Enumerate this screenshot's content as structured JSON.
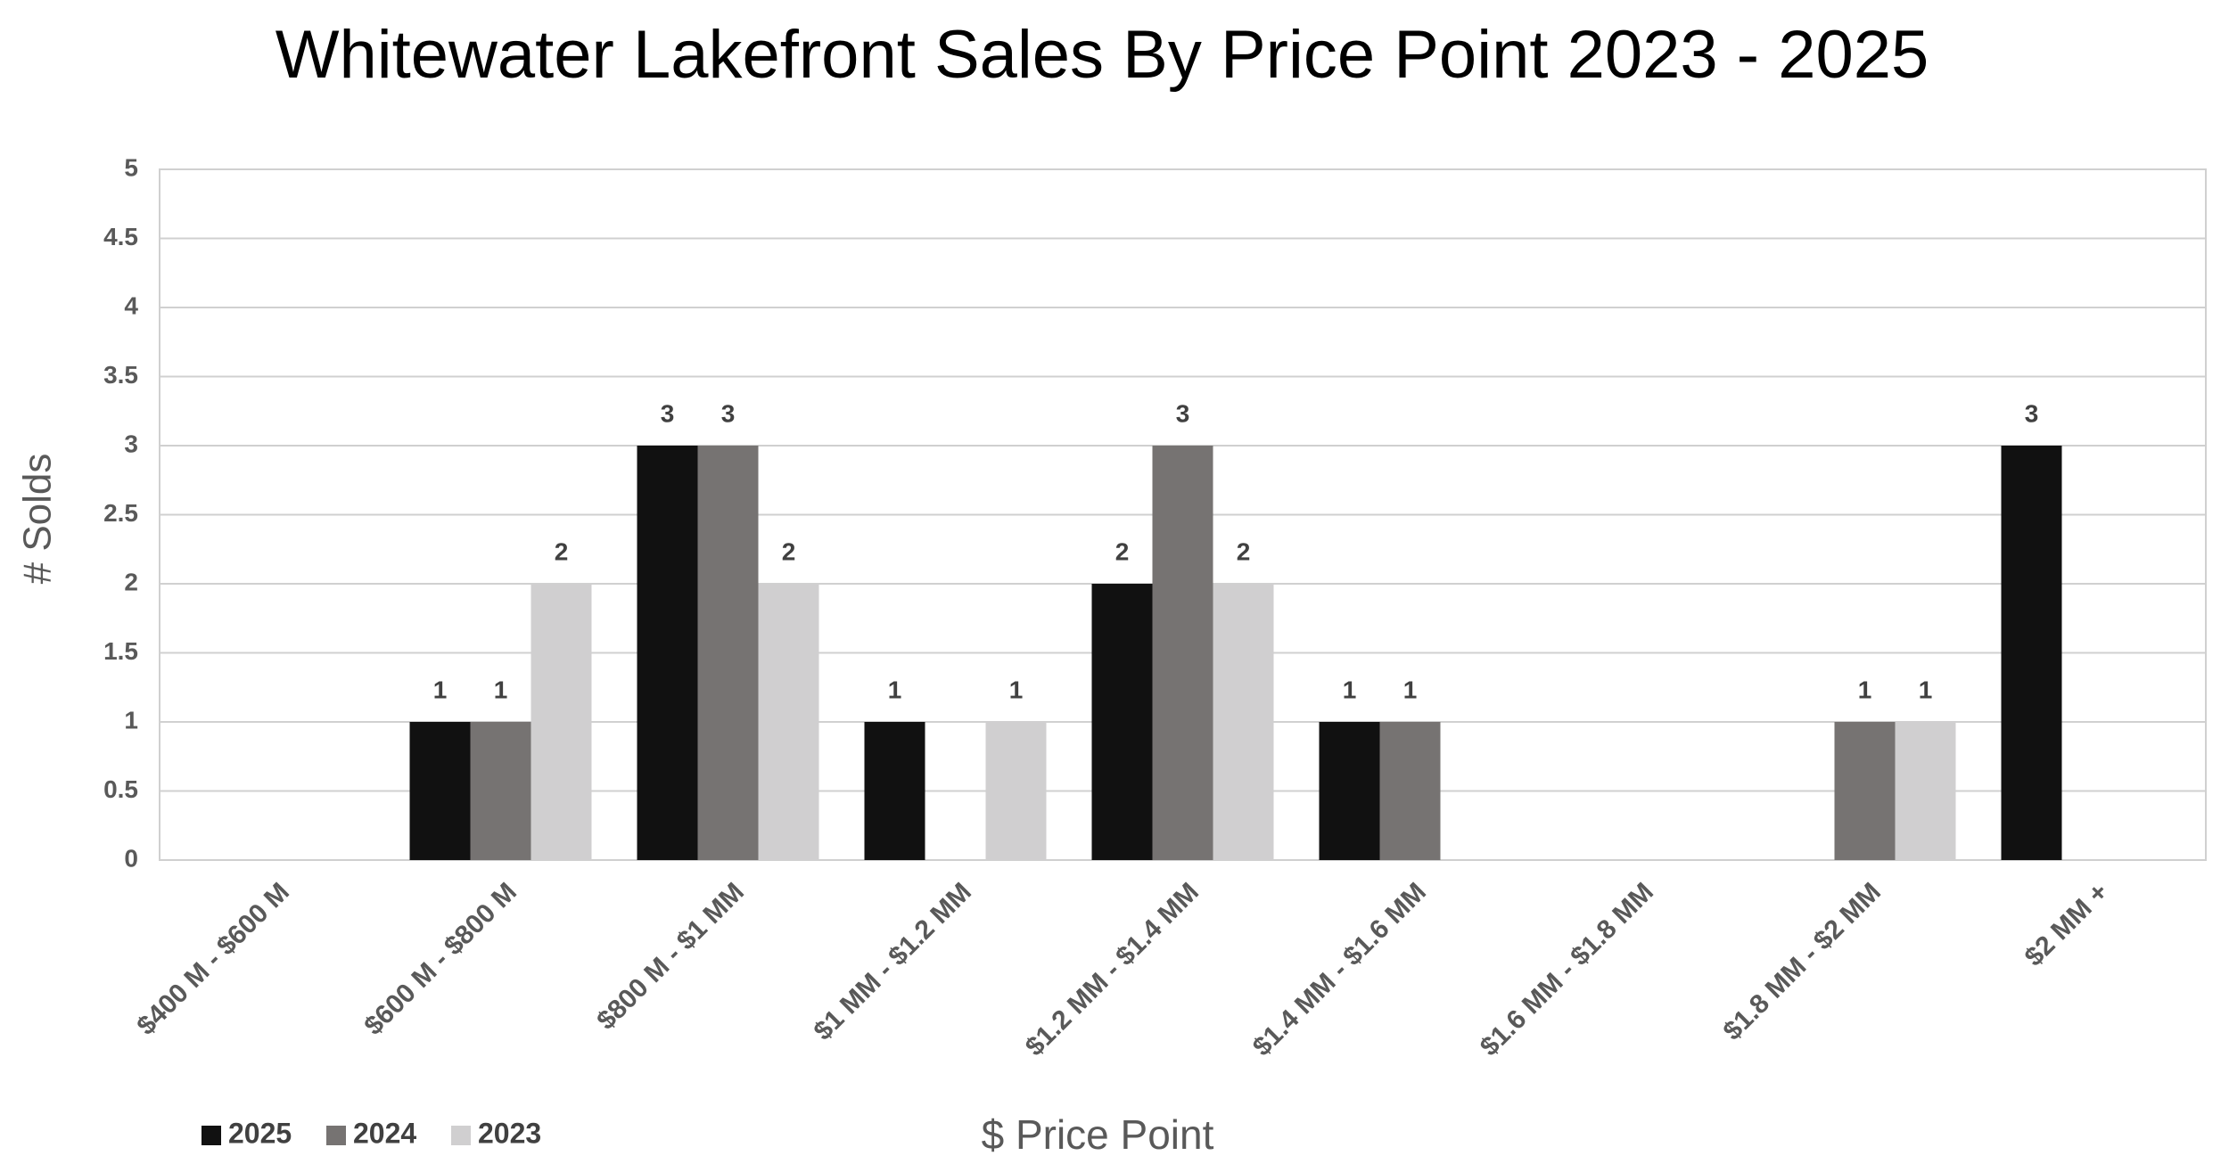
{
  "chart_data": {
    "type": "bar",
    "title": "Whitewater Lakefront Sales By Price Point 2023 - 2025",
    "x_label": "$ Price Point",
    "y_label": "# Solds",
    "categories": [
      "$400 M - $600 M",
      "$600 M - $800 M",
      "$800 M - $1 MM",
      "$1 MM - $1.2 MM",
      "$1.2 MM - $1.4 MM",
      "$1.4 MM - $1.6 MM",
      "$1.6 MM - $1.8 MM",
      "$1.8 MM - $2 MM",
      "$2 MM +"
    ],
    "series": [
      {
        "name": "2025",
        "color": "#111111",
        "values": [
          0,
          1,
          3,
          1,
          2,
          1,
          0,
          0,
          3
        ]
      },
      {
        "name": "2024",
        "color": "#767372",
        "values": [
          0,
          1,
          3,
          0,
          3,
          1,
          0,
          1,
          0
        ]
      },
      {
        "name": "2023",
        "color": "#d0cfd0",
        "values": [
          0,
          2,
          2,
          1,
          2,
          0,
          0,
          1,
          0
        ]
      }
    ],
    "ylim": [
      0,
      5
    ],
    "yticks": [
      0,
      0.5,
      1,
      1.5,
      2,
      2.5,
      3,
      3.5,
      4,
      4.5,
      5
    ],
    "grid": true,
    "legend": "bottom-left"
  }
}
